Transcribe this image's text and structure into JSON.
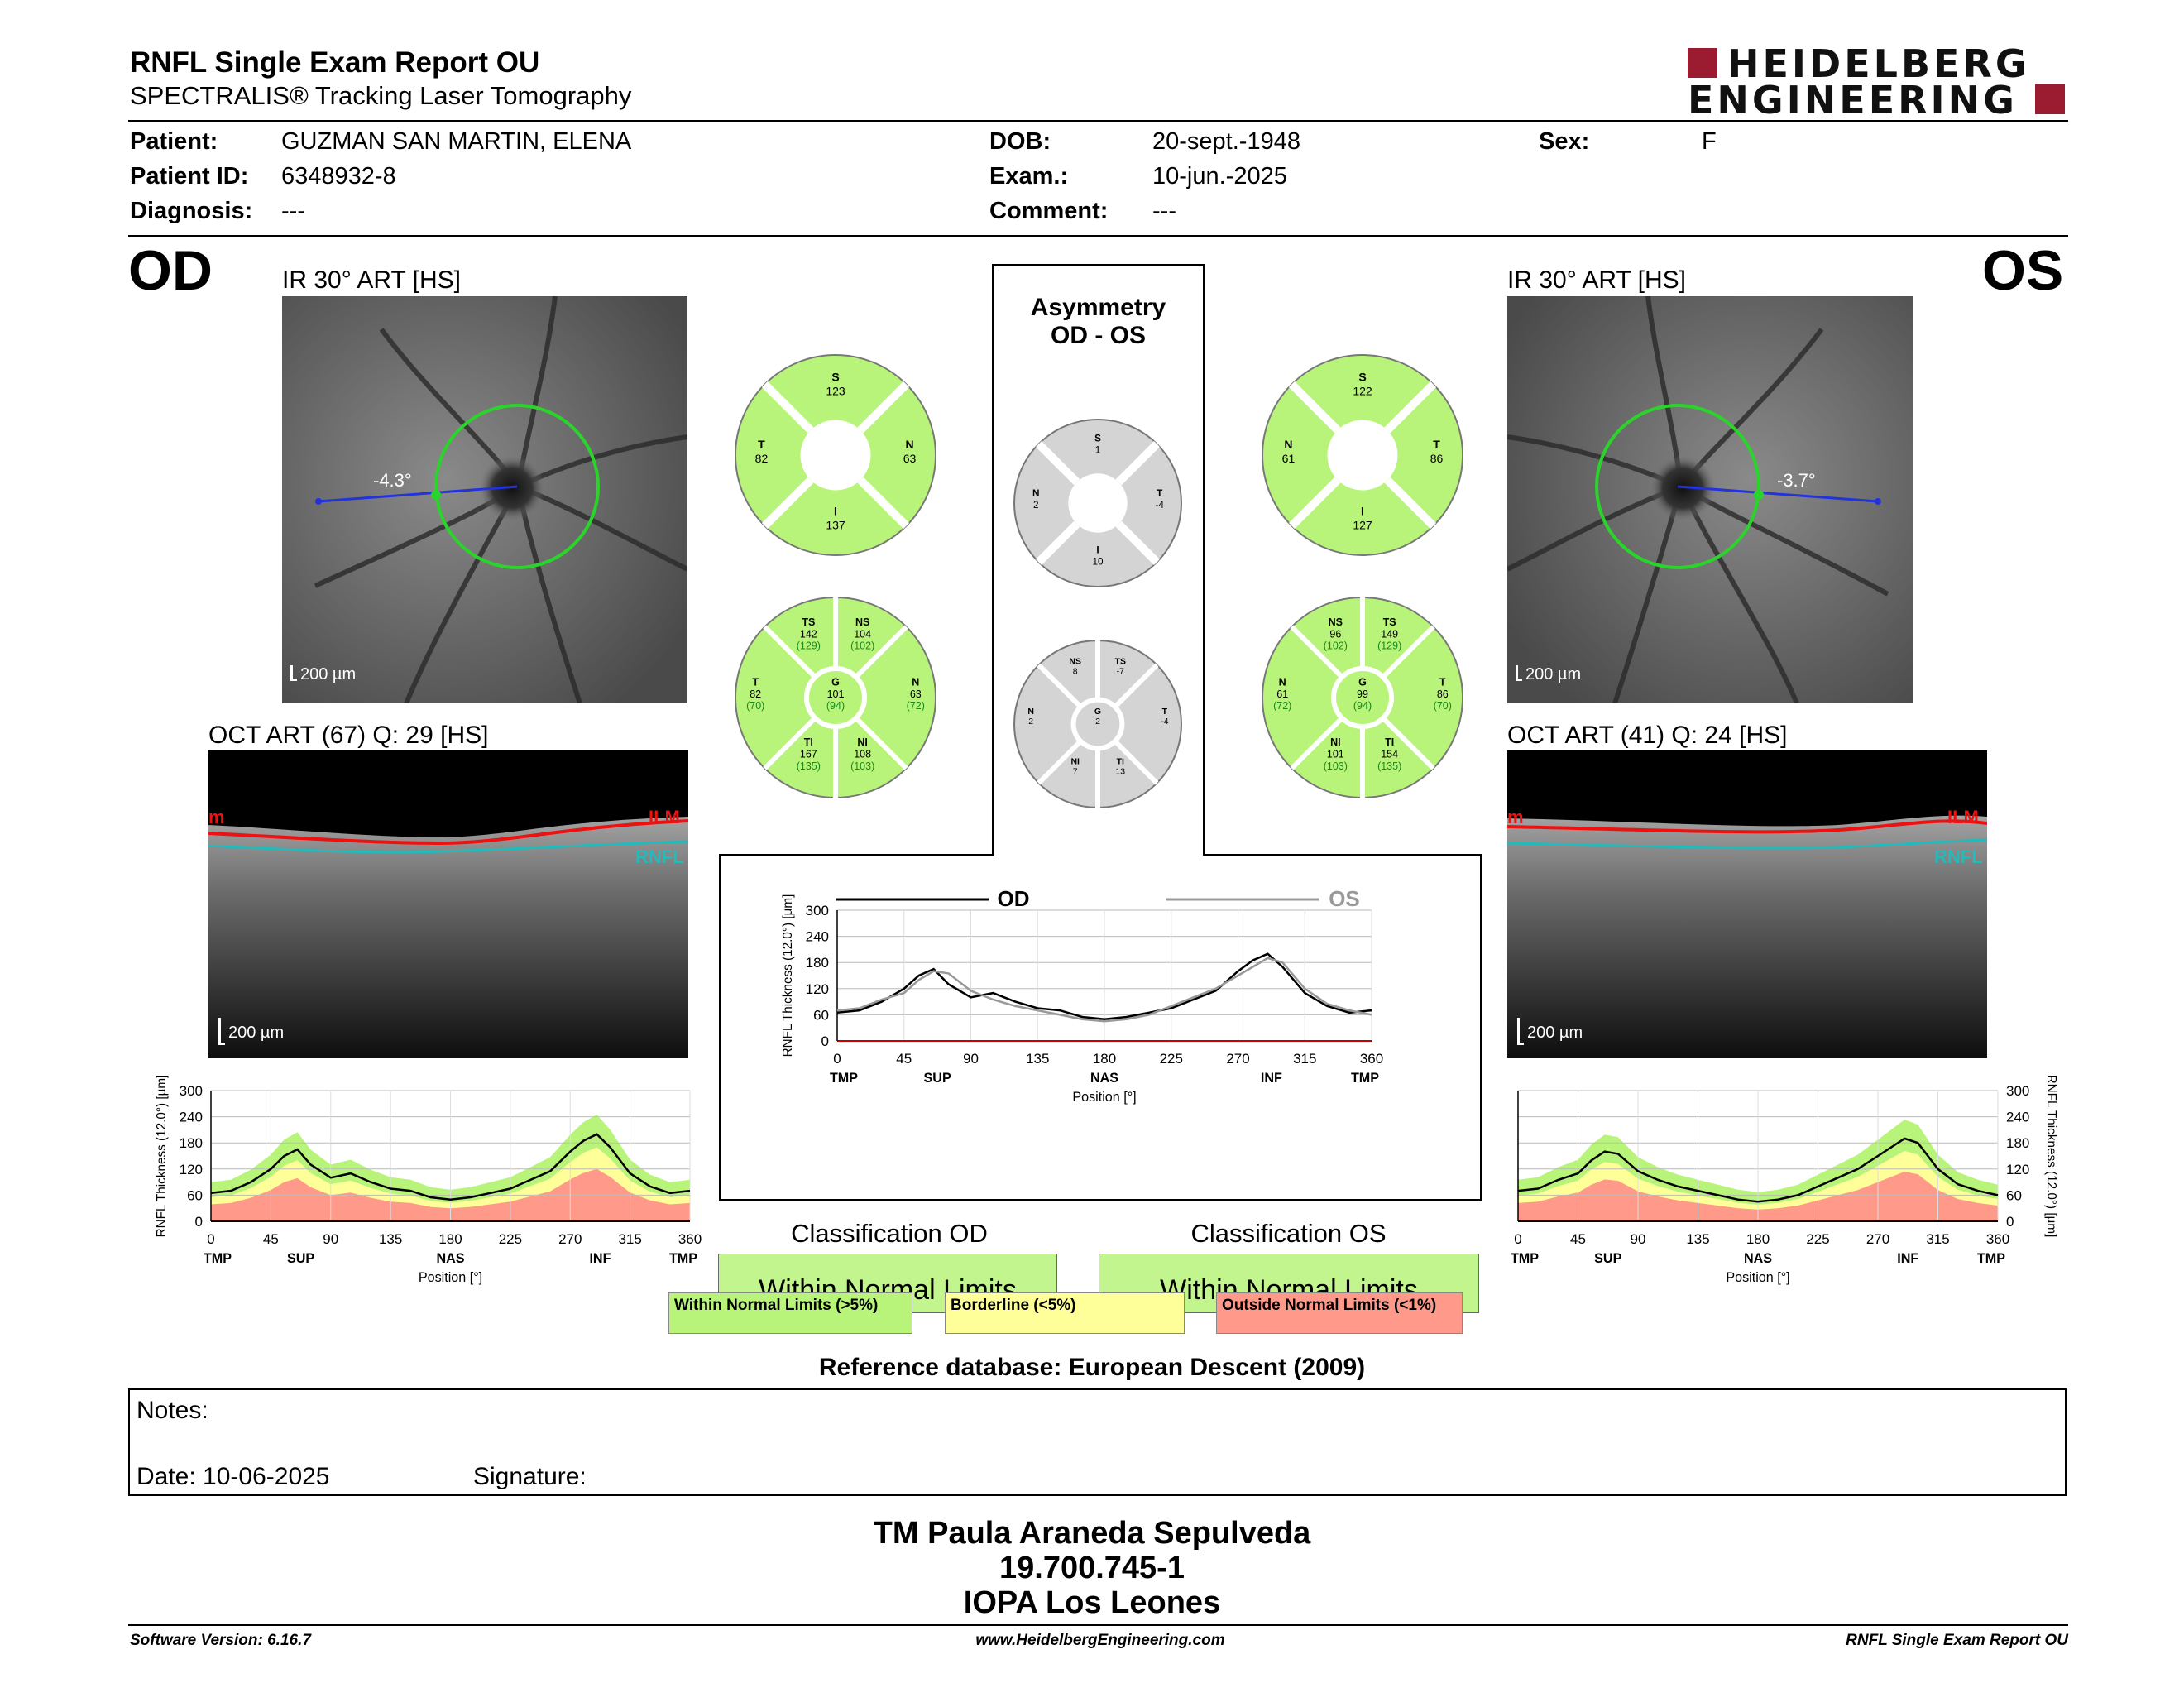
{
  "report": {
    "title": "RNFL Single Exam Report OU",
    "subtitle": "SPECTRALIS® Tracking Laser Tomography",
    "logo_line1": "HEIDELBERG",
    "logo_line2": "ENGINEERING"
  },
  "patient": {
    "patient_label": "Patient:",
    "patient_value": "GUZMAN SAN MARTIN, ELENA",
    "id_label": "Patient ID:",
    "id_value": "6348932-8",
    "diag_label": "Diagnosis:",
    "diag_value": "---",
    "dob_label": "DOB:",
    "dob_value": "20-sept.-1948",
    "exam_label": "Exam.:",
    "exam_value": "10-jun.-2025",
    "comment_label": "Comment:",
    "comment_value": "---",
    "sex_label": "Sex:",
    "sex_value": "F"
  },
  "od": {
    "eye": "OD",
    "ir_title": "IR 30° ART [HS]",
    "angle": "-4.3°",
    "scale_ir": "200 µm",
    "oct_title": "OCT ART (67) Q: 29 [HS]",
    "scale_oct": "200 µm",
    "ilm": "ILM",
    "rnfl": "RNFL",
    "ilm_cut": "m",
    "sectors4": {
      "S": "123",
      "T": "82",
      "N": "63",
      "I": "137"
    },
    "sectors6": {
      "TS": "142",
      "TS_n": "(129)",
      "NS": "104",
      "NS_n": "(102)",
      "T": "82",
      "T_n": "(70)",
      "G": "101",
      "G_n": "(94)",
      "N": "63",
      "N_n": "(72)",
      "TI": "167",
      "TI_n": "(135)",
      "NI": "108",
      "NI_n": "(103)"
    },
    "classification_title": "Classification OD",
    "classification": "Within Normal Limits"
  },
  "os": {
    "eye": "OS",
    "ir_title": "IR 30° ART [HS]",
    "angle": "-3.7°",
    "scale_ir": "200 µm",
    "oct_title": "OCT ART (41) Q: 24 [HS]",
    "scale_oct": "200 µm",
    "ilm": "ILM",
    "rnfl": "RNFL",
    "ilm_cut": "m",
    "sectors4": {
      "S": "122",
      "N": "61",
      "T": "86",
      "I": "127"
    },
    "sectors6": {
      "NS": "96",
      "NS_n": "(102)",
      "TS": "149",
      "TS_n": "(129)",
      "N": "61",
      "N_n": "(72)",
      "G": "99",
      "G_n": "(94)",
      "T": "86",
      "T_n": "(70)",
      "NI": "101",
      "NI_n": "(103)",
      "TI": "154",
      "TI_n": "(135)"
    },
    "classification_title": "Classification OS",
    "classification": "Within Normal Limits"
  },
  "asymmetry": {
    "title1": "Asymmetry",
    "title2": "OD - OS",
    "sectors4": {
      "S": "1",
      "N": "2",
      "T": "-4",
      "I": "10"
    },
    "sectors6": {
      "NS": "8",
      "TS": "-7",
      "N": "2",
      "G": "2",
      "T": "-4",
      "NI": "7",
      "TI": "13"
    },
    "legend_od": "OD",
    "legend_os": "OS"
  },
  "sector_labels": {
    "S": "S",
    "T": "T",
    "N": "N",
    "I": "I",
    "TS": "TS",
    "NS": "NS",
    "G": "G",
    "TI": "TI",
    "NI": "NI"
  },
  "chart_axes": {
    "ylabel": "RNFL Thickness (12.0°) [µm]",
    "xlabel": "Position [°]",
    "yticks": [
      "300",
      "240",
      "180",
      "120",
      "60",
      "0"
    ],
    "xticks": [
      "0",
      "45",
      "90",
      "135",
      "180",
      "225",
      "270",
      "315",
      "360"
    ],
    "regions": [
      "TMP",
      "SUP",
      "NAS",
      "INF",
      "TMP"
    ]
  },
  "legend": {
    "normal": "Within Normal Limits (>5%)",
    "borderline": "Borderline (<5%)",
    "outside": "Outside Normal Limits (<1%)"
  },
  "reference": "Reference database: European Descent (2009)",
  "notes": {
    "label": "Notes:",
    "date": "Date: 10-06-2025",
    "signature": "Signature:"
  },
  "operator": {
    "name": "TM Paula Araneda Sepulveda",
    "id": "19.700.745-1",
    "institution": "IOPA Los Leones"
  },
  "footer": {
    "version": "Software Version: 6.16.7",
    "url": "www.HeidelbergEngineering.com",
    "report": "RNFL Single Exam Report OU"
  },
  "colors": {
    "normal": "#b8f47a",
    "borderline": "#ffff99",
    "outside": "#ff9a8a",
    "gray": "#d4d4d4",
    "brand": "#9b1b30",
    "circle": "#2ad42a"
  },
  "chart_data": [
    {
      "type": "line",
      "title": "OD",
      "xlabel": "Position [°]",
      "ylabel": "RNFL Thickness (12.0°) [µm]",
      "xlim": [
        0,
        360
      ],
      "ylim": [
        0,
        300
      ],
      "x": [
        0,
        15,
        30,
        45,
        55,
        65,
        75,
        90,
        105,
        120,
        135,
        150,
        165,
        180,
        195,
        210,
        225,
        240,
        255,
        270,
        280,
        290,
        300,
        315,
        330,
        345,
        360
      ],
      "series": [
        {
          "name": "OD",
          "values": [
            65,
            70,
            90,
            120,
            150,
            165,
            130,
            100,
            110,
            90,
            75,
            70,
            55,
            50,
            55,
            65,
            75,
            95,
            115,
            160,
            185,
            200,
            170,
            110,
            80,
            65,
            70
          ]
        },
        {
          "name": "OS",
          "values": [
            70,
            75,
            95,
            110,
            140,
            160,
            155,
            115,
            95,
            80,
            70,
            60,
            50,
            45,
            50,
            60,
            80,
            100,
            120,
            150,
            170,
            190,
            180,
            120,
            85,
            70,
            60
          ]
        }
      ]
    },
    {
      "type": "area",
      "title": "OD",
      "xlabel": "Position [°]",
      "ylabel": "RNFL Thickness (12.0°) [µm]",
      "xlim": [
        0,
        360
      ],
      "ylim": [
        0,
        300
      ],
      "x": [
        0,
        15,
        30,
        45,
        55,
        65,
        75,
        90,
        105,
        120,
        135,
        150,
        165,
        180,
        195,
        210,
        225,
        240,
        255,
        270,
        280,
        290,
        300,
        315,
        330,
        345,
        360
      ],
      "series": [
        {
          "name": "OD",
          "values": [
            65,
            70,
            90,
            120,
            150,
            165,
            130,
            100,
            110,
            90,
            75,
            70,
            55,
            50,
            55,
            65,
            75,
            95,
            115,
            160,
            185,
            200,
            170,
            110,
            80,
            65,
            70
          ]
        }
      ]
    },
    {
      "type": "area",
      "title": "OS",
      "xlabel": "Position [°]",
      "ylabel": "RNFL Thickness (12.0°) [µm]",
      "xlim": [
        0,
        360
      ],
      "ylim": [
        0,
        300
      ],
      "x": [
        0,
        15,
        30,
        45,
        55,
        65,
        75,
        90,
        105,
        120,
        135,
        150,
        165,
        180,
        195,
        210,
        225,
        240,
        255,
        270,
        280,
        290,
        300,
        315,
        330,
        345,
        360
      ],
      "series": [
        {
          "name": "OS",
          "values": [
            70,
            75,
            95,
            110,
            140,
            160,
            155,
            115,
            95,
            80,
            70,
            60,
            50,
            45,
            50,
            60,
            80,
            100,
            120,
            150,
            170,
            190,
            180,
            120,
            85,
            70,
            60
          ]
        }
      ]
    }
  ]
}
